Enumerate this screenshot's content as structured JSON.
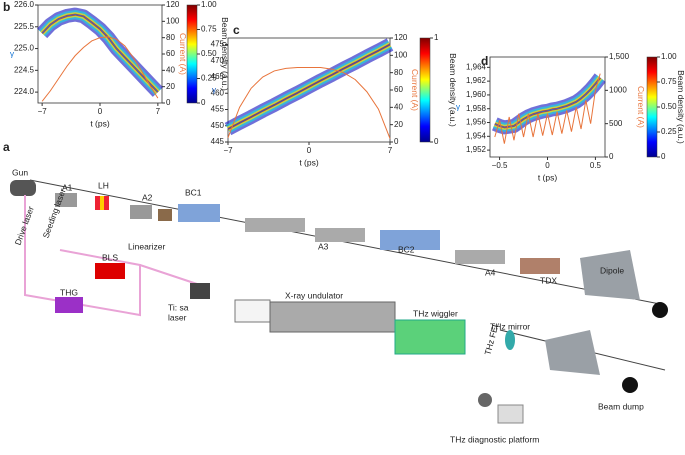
{
  "chart_data": [
    {
      "type": "density",
      "panel": "b",
      "x_label": "t (ps)",
      "y_label": "γ",
      "y2_label": "Current (A)",
      "colorbar_label": "Beam density (a.u.)",
      "xlim": [
        -7.5,
        7.5
      ],
      "xticks": [
        {
          "value": -7,
          "label": "−7"
        },
        0,
        7
      ],
      "ylim": [
        223.75,
        226.0
      ],
      "yticks": [
        {
          "value": 224,
          "label": "224.0"
        },
        224.5,
        {
          "value": 225,
          "label": "225.0"
        },
        225.5,
        {
          "value": 226,
          "label": "226.0"
        }
      ],
      "y2lim": [
        0,
        120
      ],
      "y2ticks": [
        0,
        20,
        40,
        60,
        80,
        100,
        120
      ],
      "colorbar_lim": [
        0,
        1
      ],
      "colorbar_ticks": [
        0,
        0.25,
        {
          "value": 0.5,
          "label": "0.50"
        },
        0.75,
        {
          "value": 1,
          "label": "1.00"
        }
      ],
      "x": [
        -7,
        -6,
        -5,
        -4,
        -3,
        -2,
        -1,
        0,
        1,
        2,
        3,
        4,
        5,
        6,
        7
      ],
      "series": [
        {
          "color": "#1a78d6",
          "values": [
            225.35,
            225.55,
            225.68,
            225.75,
            225.78,
            225.74,
            225.6,
            225.45,
            225.25,
            225.0,
            224.8,
            224.6,
            224.4,
            224.2,
            224.0
          ]
        },
        {
          "color": "#e8743b",
          "axis": "y2",
          "values": [
            2,
            15,
            30,
            45,
            58,
            68,
            76,
            80,
            81,
            78,
            70,
            56,
            40,
            22,
            6
          ]
        }
      ]
    },
    {
      "type": "density",
      "panel": "c",
      "x_label": "t (ps)",
      "y_label": "γ",
      "y2_label": "Current (A)",
      "colorbar_label": "Beam density (a.u.)",
      "xlim": [
        -7,
        7
      ],
      "xticks": [
        {
          "value": -7,
          "label": "−7"
        },
        0,
        7
      ],
      "ylim": [
        445,
        477
      ],
      "yticks": [
        445,
        450,
        455,
        460,
        465,
        470,
        475
      ],
      "y2lim": [
        0,
        120
      ],
      "y2ticks": [
        0,
        20,
        40,
        60,
        80,
        100,
        120
      ],
      "colorbar_lim": [
        0,
        1
      ],
      "colorbar_ticks": [
        0,
        1
      ],
      "x": [
        -7,
        -6,
        -5,
        -4,
        -3,
        -2,
        -1,
        0,
        1,
        2,
        3,
        4,
        5,
        6,
        7
      ],
      "series": [
        {
          "color": "#1f5fbf",
          "values": [
            449,
            450.9,
            452.7,
            454.6,
            456.4,
            458.3,
            460.1,
            462,
            463.9,
            465.7,
            467.6,
            469.4,
            471.3,
            473.1,
            475
          ]
        },
        {
          "color": "#e8743b",
          "axis": "y2",
          "values": [
            5,
            40,
            62,
            75,
            82,
            85,
            86,
            86,
            86,
            84,
            80,
            72,
            58,
            38,
            4
          ]
        }
      ]
    },
    {
      "type": "density",
      "panel": "d",
      "x_label": "t (ps)",
      "y_label": "γ",
      "y2_label": "Current (A)",
      "colorbar_label": "Beam density (a.u.)",
      "xlim": [
        -0.6,
        0.6
      ],
      "xticks": [
        {
          "value": -0.5,
          "label": "−0.5"
        },
        0,
        0.5
      ],
      "ylim": [
        1951,
        1965.5
      ],
      "yticks": [
        {
          "value": 1952,
          "label": "1,952"
        },
        {
          "value": 1954,
          "label": "1,954"
        },
        {
          "value": 1956,
          "label": "1,956"
        },
        {
          "value": 1958,
          "label": "1,958"
        },
        {
          "value": 1960,
          "label": "1,960"
        },
        {
          "value": 1962,
          "label": "1,962"
        },
        {
          "value": 1964,
          "label": "1,964"
        }
      ],
      "y2lim": [
        0,
        1500
      ],
      "y2ticks": [
        0,
        500,
        1000,
        {
          "value": 1500,
          "label": "1,500"
        }
      ],
      "colorbar_lim": [
        0,
        1
      ],
      "colorbar_ticks": [
        0,
        0.25,
        {
          "value": 0.5,
          "label": "0.50"
        },
        0.75,
        {
          "value": 1,
          "label": "1.00"
        }
      ],
      "x": [
        -0.55,
        -0.5,
        -0.45,
        -0.4,
        -0.35,
        -0.3,
        -0.25,
        -0.2,
        -0.15,
        -0.1,
        -0.05,
        0,
        0.05,
        0.1,
        0.15,
        0.2,
        0.25,
        0.3,
        0.35,
        0.4,
        0.45,
        0.5,
        0.55
      ],
      "series": [
        {
          "color": "#1a78d6",
          "values": [
            1955.8,
            1955.5,
            1955.3,
            1955.4,
            1955.5,
            1956.0,
            1956.5,
            1956.9,
            1957.2,
            1957.4,
            1957.6,
            1957.7,
            1957.9,
            1958.0,
            1958.2,
            1958.4,
            1958.7,
            1959.0,
            1959.5,
            1960.1,
            1960.8,
            1961.6,
            1962.5
          ]
        },
        {
          "color": "#e8743b",
          "axis": "y2",
          "values": [
            300,
            550,
            200,
            600,
            250,
            650,
            300,
            650,
            300,
            650,
            320,
            650,
            330,
            680,
            350,
            700,
            380,
            750,
            420,
            850,
            500,
            1000,
            1250
          ]
        }
      ]
    }
  ],
  "figure": {
    "panel_a": "a",
    "labels": [
      "Gun",
      "A1",
      "LH",
      "A2",
      "BC1",
      "Linearizer",
      "A3",
      "BC2",
      "A4",
      "TDX",
      "Dipole",
      "Drive laser",
      "Seeding laser",
      "BLS",
      "THG",
      "Ti: sa",
      "laser",
      "X-ray undulator",
      "THz wiggler",
      "THz mirror",
      "THz FEL",
      "Beam dump",
      "THz diagnostic platform"
    ]
  }
}
